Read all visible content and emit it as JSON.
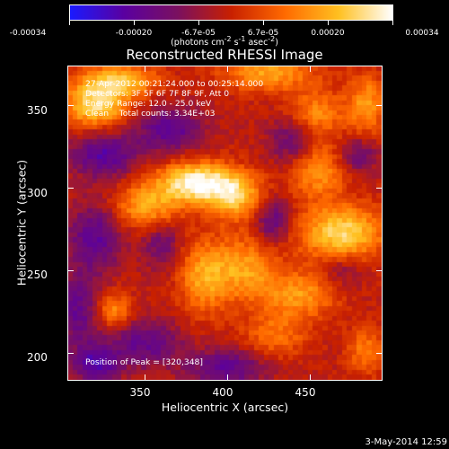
{
  "colorbar": {
    "ticks": [
      "-0.00034",
      "-0.00020",
      "-6.7e-05",
      "6.7e-05",
      "0.00020",
      "0.00034"
    ],
    "units_html": "(photons cm<sup>-2</sup> s<sup>-1</sup> asec<sup>-2</sup>)",
    "colors": [
      "#1a1aff",
      "#5a00a0",
      "#7a1060",
      "#c82000",
      "#ff6a00",
      "#ffc020",
      "#ffffff"
    ]
  },
  "title": "Reconstructed RHESSI Image",
  "annotations": {
    "time_range": "27-Apr-2012 00:21:24.000 to 00:25:14.000",
    "detectors": "Detectors: 3F 5F 6F 7F 8F 9F, Att 0",
    "energy_range": "Energy Range: 12.0 - 25.0 keV",
    "method_counts": "Clean    Total counts: 3.34E+03",
    "peak_position": "Position of Peak = [320,348]"
  },
  "chart_data": {
    "type": "heatmap",
    "title": "Reconstructed RHESSI Image",
    "xlabel": "Heliocentric X (arcsec)",
    "ylabel": "Heliocentric Y (arcsec)",
    "xlim": [
      303,
      494
    ],
    "ylim": [
      183,
      374
    ],
    "xticks": [
      350,
      400,
      450
    ],
    "yticks": [
      200,
      250,
      300,
      350
    ],
    "colorbar_range": [
      -0.00034,
      0.00034
    ],
    "colorbar_ticks": [
      -0.00034,
      -0.0002,
      -6.7e-05,
      6.7e-05,
      0.0002,
      0.00034
    ],
    "peak": [
      320,
      348
    ],
    "blobs": [
      {
        "x": 380,
        "y": 303,
        "amp": 1.0,
        "sx": 16,
        "sy": 9
      },
      {
        "x": 405,
        "y": 295,
        "amp": 0.75,
        "sx": 12,
        "sy": 10
      },
      {
        "x": 350,
        "y": 288,
        "amp": 0.6,
        "sx": 14,
        "sy": 10
      },
      {
        "x": 320,
        "y": 350,
        "amp": 0.85,
        "sx": 14,
        "sy": 10
      },
      {
        "x": 335,
        "y": 365,
        "amp": 0.7,
        "sx": 16,
        "sy": 7
      },
      {
        "x": 470,
        "y": 272,
        "amp": 0.85,
        "sx": 18,
        "sy": 12
      },
      {
        "x": 455,
        "y": 310,
        "amp": 0.55,
        "sx": 12,
        "sy": 12
      },
      {
        "x": 410,
        "y": 250,
        "amp": 0.6,
        "sx": 14,
        "sy": 14
      },
      {
        "x": 385,
        "y": 245,
        "amp": 0.55,
        "sx": 10,
        "sy": 16
      },
      {
        "x": 445,
        "y": 235,
        "amp": 0.55,
        "sx": 16,
        "sy": 10
      },
      {
        "x": 425,
        "y": 370,
        "amp": 0.6,
        "sx": 20,
        "sy": 8
      },
      {
        "x": 455,
        "y": 345,
        "amp": 0.5,
        "sx": 12,
        "sy": 10
      },
      {
        "x": 330,
        "y": 225,
        "amp": 0.55,
        "sx": 8,
        "sy": 8
      },
      {
        "x": 485,
        "y": 350,
        "amp": 0.55,
        "sx": 8,
        "sy": 14
      },
      {
        "x": 430,
        "y": 210,
        "amp": 0.4,
        "sx": 14,
        "sy": 10
      },
      {
        "x": 485,
        "y": 200,
        "amp": 0.45,
        "sx": 8,
        "sy": 10
      },
      {
        "x": 320,
        "y": 270,
        "amp": -0.55,
        "sx": 12,
        "sy": 14
      },
      {
        "x": 325,
        "y": 320,
        "amp": -0.6,
        "sx": 14,
        "sy": 10
      },
      {
        "x": 365,
        "y": 335,
        "amp": -0.55,
        "sx": 14,
        "sy": 10
      },
      {
        "x": 310,
        "y": 225,
        "amp": -0.5,
        "sx": 10,
        "sy": 16
      },
      {
        "x": 350,
        "y": 205,
        "amp": -0.5,
        "sx": 16,
        "sy": 10
      },
      {
        "x": 400,
        "y": 190,
        "amp": -0.55,
        "sx": 16,
        "sy": 8
      },
      {
        "x": 440,
        "y": 328,
        "amp": -0.45,
        "sx": 10,
        "sy": 10
      },
      {
        "x": 480,
        "y": 320,
        "amp": -0.45,
        "sx": 8,
        "sy": 8
      },
      {
        "x": 470,
        "y": 250,
        "amp": -0.3,
        "sx": 10,
        "sy": 8
      },
      {
        "x": 320,
        "y": 192,
        "amp": -0.6,
        "sx": 10,
        "sy": 8
      },
      {
        "x": 428,
        "y": 280,
        "amp": -0.5,
        "sx": 8,
        "sy": 10
      },
      {
        "x": 360,
        "y": 265,
        "amp": -0.4,
        "sx": 8,
        "sy": 10
      }
    ]
  },
  "x_label": "Heliocentric X (arcsec)",
  "y_label": "Heliocentric Y (arcsec)",
  "datestamp": "3-May-2014 12:59"
}
